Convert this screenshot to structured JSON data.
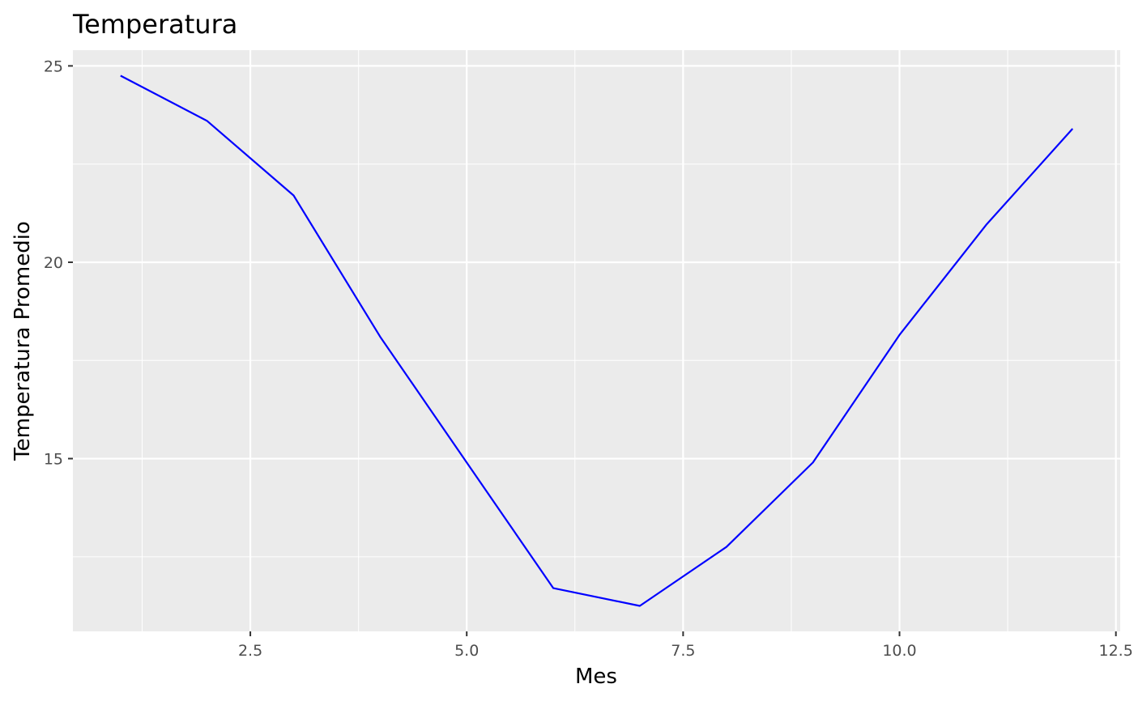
{
  "chart_data": {
    "type": "line",
    "title": "Temperatura",
    "xlabel": "Mes",
    "ylabel": "Temperatura Promedio",
    "x": [
      1,
      2,
      3,
      4,
      5,
      6,
      7,
      8,
      9,
      10,
      11,
      12
    ],
    "series": [
      {
        "values": [
          24.75,
          23.6,
          21.7,
          18.1,
          14.9,
          11.7,
          11.25,
          12.75,
          14.9,
          18.15,
          20.95,
          23.4
        ]
      }
    ],
    "xlim": [
      0.45,
      12.55
    ],
    "ylim": [
      10.6,
      25.4
    ],
    "x_ticks": [
      2.5,
      5.0,
      7.5,
      10.0,
      12.5
    ],
    "x_tick_labels": [
      "2.5",
      "5.0",
      "7.5",
      "10.0",
      "12.5"
    ],
    "y_ticks": [
      15,
      20,
      25
    ],
    "y_tick_labels": [
      "15",
      "20",
      "25"
    ],
    "grid": true,
    "line_color": "#0000ff",
    "panel_background": "#ebebeb",
    "grid_color": "#ffffff"
  }
}
